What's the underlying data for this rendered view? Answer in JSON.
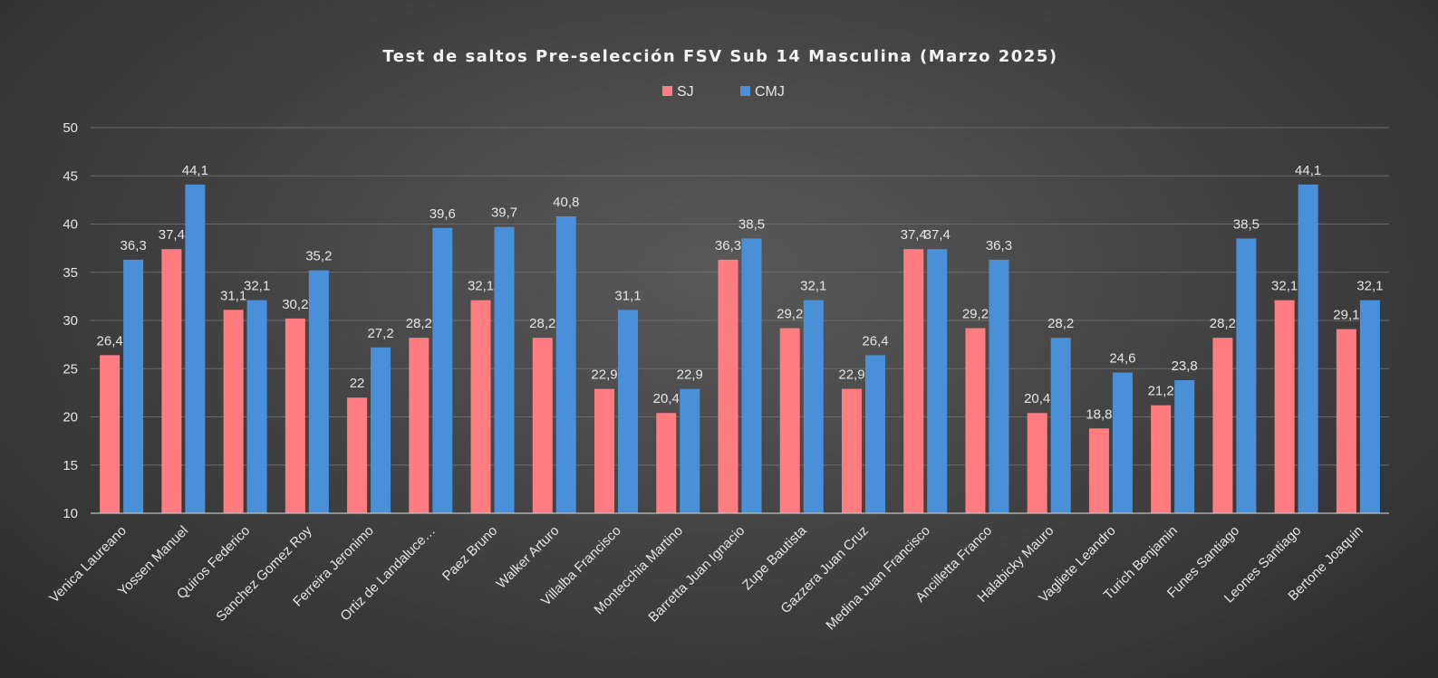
{
  "chart_data": {
    "type": "bar",
    "title": "Test de saltos Pre-selección FSV Sub 14 Masculina (Marzo 2025)",
    "xlabel": "",
    "ylabel": "",
    "ylim": [
      10,
      50
    ],
    "yticks": [
      10,
      15,
      20,
      25,
      30,
      35,
      40,
      45,
      50
    ],
    "grid": true,
    "legend_position": "top",
    "categories": [
      "Venica Laureano",
      "Yossen Manuel",
      "Quiros Federico",
      "Sanchez Gomez Roy",
      "Ferreira Jeronimo",
      "Ortiz de Landaluce…",
      "Paez Bruno",
      "Walker Arturo",
      "Villalba Francisco",
      "Montecchia Martino",
      "Barretta Juan Ignacio",
      "Zupe Bautista",
      "Gazzera Juan Cruz",
      "Medina Juan Francisco",
      "Ancilletta Franco",
      "Halabicky Mauro",
      "Vagliete Leandro",
      "Turich Benjamin",
      "Funes Santiago",
      "Leones Santiago",
      "Bertone Joaquin"
    ],
    "series": [
      {
        "name": "SJ",
        "color": "#ff7c80",
        "values": [
          26.4,
          37.4,
          31.1,
          30.2,
          22,
          28.2,
          32.1,
          28.2,
          22.9,
          20.4,
          36.3,
          29.2,
          22.9,
          37.4,
          29.2,
          20.4,
          18.8,
          21.2,
          28.2,
          32.1,
          29.1
        ],
        "labels": [
          "26,4",
          "37,4",
          "31,1",
          "30,2",
          "22",
          "28,2",
          "32,1",
          "28,2",
          "22,9",
          "20,4",
          "36,3",
          "29,2",
          "22,9",
          "37,4",
          "29,2",
          "20,4",
          "18,8",
          "21,2",
          "28,2",
          "32,1",
          "29,1"
        ]
      },
      {
        "name": "CMJ",
        "color": "#4a90d9",
        "values": [
          36.3,
          44.1,
          32.1,
          35.2,
          27.2,
          39.6,
          39.7,
          40.8,
          31.1,
          22.9,
          38.5,
          32.1,
          26.4,
          37.4,
          36.3,
          28.2,
          24.6,
          23.8,
          38.5,
          44.1,
          32.1
        ],
        "labels": [
          "36,3",
          "44,1",
          "32,1",
          "35,2",
          "27,2",
          "39,6",
          "39,7",
          "40,8",
          "31,1",
          "22,9",
          "38,5",
          "32,1",
          "26,4",
          "37,4",
          "36,3",
          "28,2",
          "24,6",
          "23,8",
          "38,5",
          "44,1",
          "32,1"
        ]
      }
    ]
  }
}
